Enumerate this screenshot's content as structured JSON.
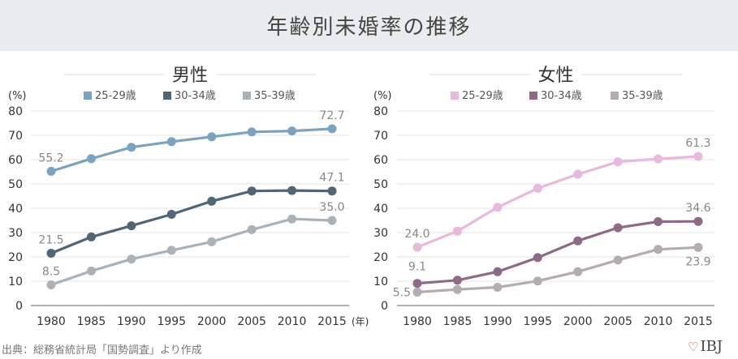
{
  "header": {
    "title": "年齢別未婚率の推移"
  },
  "footer": {
    "source": "出典：総務省統計局「国勢調査」より作成",
    "logo_text": "IBJ"
  },
  "chart_data": [
    {
      "type": "line",
      "title": "男性",
      "ylabel": "(%)",
      "x_unit": "(年)",
      "ylim": [
        0,
        80
      ],
      "yticks": [
        0,
        10,
        20,
        30,
        40,
        50,
        60,
        70,
        80
      ],
      "x": [
        1980,
        1985,
        1990,
        1995,
        2000,
        2005,
        2010,
        2015
      ],
      "grid": true,
      "legend_position": "top",
      "series": [
        {
          "name": "25-29歳",
          "color": "#7aa3c0",
          "values": [
            55.2,
            60.4,
            65.1,
            67.4,
            69.4,
            71.4,
            71.8,
            72.7
          ],
          "labels": {
            "0": "55.2",
            "7": "72.7"
          }
        },
        {
          "name": "30-34歳",
          "color": "#4f6678",
          "values": [
            21.5,
            28.2,
            32.8,
            37.5,
            42.9,
            47.1,
            47.3,
            47.1
          ],
          "labels": {
            "0": "21.5",
            "7": "47.1"
          }
        },
        {
          "name": "35-39歳",
          "color": "#a8b2b8",
          "values": [
            8.5,
            14.2,
            19.1,
            22.7,
            26.2,
            31.2,
            35.6,
            35.0
          ],
          "labels": {
            "0": "8.5",
            "7": "35.0"
          }
        }
      ]
    },
    {
      "type": "line",
      "title": "女性",
      "ylabel": "(%)",
      "ylim": [
        0,
        80
      ],
      "yticks": [
        0,
        10,
        20,
        30,
        40,
        50,
        60,
        70,
        80
      ],
      "x": [
        1980,
        1985,
        1990,
        1995,
        2000,
        2005,
        2010,
        2015
      ],
      "grid": true,
      "legend_position": "top",
      "series": [
        {
          "name": "25-29歳",
          "color": "#e8b9dc",
          "values": [
            24.0,
            30.6,
            40.4,
            48.2,
            54.0,
            59.1,
            60.3,
            61.3
          ],
          "labels": {
            "0": "24.0",
            "7": "61.3"
          }
        },
        {
          "name": "30-34歳",
          "color": "#8e6a87",
          "values": [
            9.1,
            10.4,
            13.9,
            19.7,
            26.6,
            32.0,
            34.5,
            34.6
          ],
          "labels": {
            "0": "9.1",
            "7": "34.6"
          }
        },
        {
          "name": "35-39歳",
          "color": "#b4acb0",
          "values": [
            5.5,
            6.6,
            7.5,
            10.1,
            13.9,
            18.7,
            23.1,
            23.9
          ],
          "labels": {
            "0": "5.5",
            "7": "23.9"
          }
        }
      ]
    }
  ]
}
